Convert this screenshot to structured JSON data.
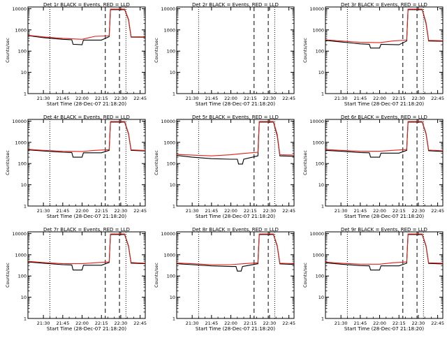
{
  "chart_data": [
    {
      "type": "line",
      "title": "Det 1r BLACK = Events, RED = LLD",
      "xlabel": "Start Time (28-Dec-07 21:18:20)",
      "ylabel": "Counts/sec",
      "x_ticks": [
        "21:30",
        "21:45",
        "22:00",
        "22:15",
        "22:30",
        "22:45"
      ],
      "y_ticks": [
        "1",
        "10",
        "100",
        "1000",
        "10000"
      ],
      "ylog": true,
      "ylim": [
        1,
        12000
      ],
      "events": [
        {
          "t": "21:18",
          "v": 540
        },
        {
          "t": "21:30",
          "v": 430
        },
        {
          "t": "21:45",
          "v": 360
        },
        {
          "t": "21:52",
          "v": 340
        },
        {
          "t": "21:53",
          "v": 210
        },
        {
          "t": "22:00",
          "v": 200
        },
        {
          "t": "22:01",
          "v": 330
        },
        {
          "t": "22:15",
          "v": 330
        },
        {
          "t": "22:21",
          "v": 480
        },
        {
          "t": "22:22",
          "v": 9000
        },
        {
          "t": "22:33",
          "v": 9000
        },
        {
          "t": "22:36",
          "v": 3000
        },
        {
          "t": "22:38",
          "v": 460
        },
        {
          "t": "22:49",
          "v": 450
        }
      ],
      "lld": [
        {
          "t": "21:18",
          "v": 560
        },
        {
          "t": "21:30",
          "v": 470
        },
        {
          "t": "21:45",
          "v": 400
        },
        {
          "t": "22:00",
          "v": 360
        },
        {
          "t": "22:10",
          "v": 500
        },
        {
          "t": "22:21",
          "v": 520
        },
        {
          "t": "22:22",
          "v": 9500
        },
        {
          "t": "22:33",
          "v": 9500
        },
        {
          "t": "22:36",
          "v": 3200
        },
        {
          "t": "22:38",
          "v": 480
        },
        {
          "t": "22:49",
          "v": 470
        }
      ]
    },
    {
      "type": "line",
      "title": "Det 2r BLACK = Events, RED = LLD",
      "xlabel": "Start Time (28-Dec-07 21:18:20)",
      "ylabel": "Counts/sec",
      "x_ticks": [
        "21:30",
        "21:45",
        "22:00",
        "22:15",
        "22:30",
        "22:45"
      ],
      "y_ticks": [
        "1",
        "10",
        "100",
        "1000",
        "10000"
      ],
      "ylog": true,
      "ylim": [
        1,
        12000
      ],
      "events": [],
      "lld": []
    },
    {
      "type": "line",
      "title": "Det 3r BLACK = Events, RED = LLD",
      "xlabel": "Start Time (28-Dec-07 21:18:20)",
      "ylabel": "Counts/sec",
      "x_ticks": [
        "21:30",
        "21:45",
        "22:00",
        "22:15",
        "22:30",
        "22:45"
      ],
      "y_ticks": [
        "1",
        "10",
        "100",
        "1000",
        "10000"
      ],
      "ylog": true,
      "ylim": [
        1,
        12000
      ],
      "events": [
        {
          "t": "21:18",
          "v": 320
        },
        {
          "t": "21:30",
          "v": 270
        },
        {
          "t": "21:45",
          "v": 220
        },
        {
          "t": "21:52",
          "v": 210
        },
        {
          "t": "21:53",
          "v": 140
        },
        {
          "t": "22:00",
          "v": 140
        },
        {
          "t": "22:01",
          "v": 210
        },
        {
          "t": "22:15",
          "v": 200
        },
        {
          "t": "22:21",
          "v": 300
        },
        {
          "t": "22:22",
          "v": 9000
        },
        {
          "t": "22:33",
          "v": 9000
        },
        {
          "t": "22:36",
          "v": 2000
        },
        {
          "t": "22:38",
          "v": 300
        },
        {
          "t": "22:49",
          "v": 290
        }
      ],
      "lld": [
        {
          "t": "21:18",
          "v": 340
        },
        {
          "t": "21:30",
          "v": 300
        },
        {
          "t": "21:45",
          "v": 260
        },
        {
          "t": "22:00",
          "v": 250
        },
        {
          "t": "22:10",
          "v": 300
        },
        {
          "t": "22:21",
          "v": 330
        },
        {
          "t": "22:22",
          "v": 9500
        },
        {
          "t": "22:33",
          "v": 9500
        },
        {
          "t": "22:36",
          "v": 2200
        },
        {
          "t": "22:38",
          "v": 320
        },
        {
          "t": "22:49",
          "v": 310
        }
      ]
    },
    {
      "type": "line",
      "title": "Det 4r BLACK = Events, RED = LLD",
      "xlabel": "Start Time (28-Dec-07 21:18:20)",
      "ylabel": "Counts/sec",
      "x_ticks": [
        "21:30",
        "21:45",
        "22:00",
        "22:15",
        "22:30",
        "22:45"
      ],
      "y_ticks": [
        "1",
        "10",
        "100",
        "1000",
        "10000"
      ],
      "ylog": true,
      "ylim": [
        1,
        12000
      ],
      "events": [
        {
          "t": "21:18",
          "v": 440
        },
        {
          "t": "21:30",
          "v": 390
        },
        {
          "t": "21:45",
          "v": 340
        },
        {
          "t": "21:52",
          "v": 330
        },
        {
          "t": "21:53",
          "v": 200
        },
        {
          "t": "22:00",
          "v": 200
        },
        {
          "t": "22:01",
          "v": 320
        },
        {
          "t": "22:15",
          "v": 320
        },
        {
          "t": "22:21",
          "v": 420
        },
        {
          "t": "22:22",
          "v": 9000
        },
        {
          "t": "22:33",
          "v": 9000
        },
        {
          "t": "22:36",
          "v": 2500
        },
        {
          "t": "22:38",
          "v": 420
        },
        {
          "t": "22:49",
          "v": 390
        }
      ],
      "lld": [
        {
          "t": "21:18",
          "v": 470
        },
        {
          "t": "21:30",
          "v": 420
        },
        {
          "t": "21:45",
          "v": 380
        },
        {
          "t": "22:00",
          "v": 370
        },
        {
          "t": "22:10",
          "v": 420
        },
        {
          "t": "22:21",
          "v": 450
        },
        {
          "t": "22:22",
          "v": 9500
        },
        {
          "t": "22:33",
          "v": 9500
        },
        {
          "t": "22:36",
          "v": 2700
        },
        {
          "t": "22:38",
          "v": 440
        },
        {
          "t": "22:49",
          "v": 410
        }
      ]
    },
    {
      "type": "line",
      "title": "Det 5r BLACK = Events, RED = LLD",
      "xlabel": "Start Time (28-Dec-07 21:18:20)",
      "ylabel": "Counts/sec",
      "x_ticks": [
        "21:30",
        "21:45",
        "22:00",
        "22:15",
        "22:30",
        "22:45"
      ],
      "y_ticks": [
        "1",
        "10",
        "100",
        "1000",
        "10000"
      ],
      "ylog": true,
      "ylim": [
        1,
        12000
      ],
      "events": [
        {
          "t": "21:18",
          "v": 240
        },
        {
          "t": "21:30",
          "v": 200
        },
        {
          "t": "21:45",
          "v": 170
        },
        {
          "t": "22:00",
          "v": 160
        },
        {
          "t": "22:05",
          "v": 160
        },
        {
          "t": "22:06",
          "v": 95
        },
        {
          "t": "22:09",
          "v": 95
        },
        {
          "t": "22:10",
          "v": 160
        },
        {
          "t": "22:21",
          "v": 230
        },
        {
          "t": "22:22",
          "v": 9000
        },
        {
          "t": "22:33",
          "v": 9000
        },
        {
          "t": "22:36",
          "v": 2000
        },
        {
          "t": "22:38",
          "v": 230
        },
        {
          "t": "22:49",
          "v": 220
        }
      ],
      "lld": [
        {
          "t": "21:18",
          "v": 270
        },
        {
          "t": "21:30",
          "v": 250
        },
        {
          "t": "21:45",
          "v": 230
        },
        {
          "t": "22:00",
          "v": 260
        },
        {
          "t": "22:10",
          "v": 300
        },
        {
          "t": "22:21",
          "v": 340
        },
        {
          "t": "22:22",
          "v": 9500
        },
        {
          "t": "22:33",
          "v": 9500
        },
        {
          "t": "22:36",
          "v": 2300
        },
        {
          "t": "22:38",
          "v": 260
        },
        {
          "t": "22:49",
          "v": 250
        }
      ]
    },
    {
      "type": "line",
      "title": "Det 6r BLACK = Events, RED = LLD",
      "xlabel": "Start Time (28-Dec-07 21:18:20)",
      "ylabel": "Counts/sec",
      "x_ticks": [
        "21:30",
        "21:45",
        "22:00",
        "22:15",
        "22:30",
        "22:45"
      ],
      "y_ticks": [
        "1",
        "10",
        "100",
        "1000",
        "10000"
      ],
      "ylog": true,
      "ylim": [
        1,
        12000
      ],
      "events": [
        {
          "t": "21:18",
          "v": 420
        },
        {
          "t": "21:30",
          "v": 380
        },
        {
          "t": "21:45",
          "v": 330
        },
        {
          "t": "21:52",
          "v": 320
        },
        {
          "t": "21:53",
          "v": 200
        },
        {
          "t": "22:00",
          "v": 200
        },
        {
          "t": "22:01",
          "v": 310
        },
        {
          "t": "22:15",
          "v": 310
        },
        {
          "t": "22:21",
          "v": 420
        },
        {
          "t": "22:22",
          "v": 9000
        },
        {
          "t": "22:33",
          "v": 9000
        },
        {
          "t": "22:36",
          "v": 2500
        },
        {
          "t": "22:38",
          "v": 400
        },
        {
          "t": "22:49",
          "v": 370
        }
      ],
      "lld": [
        {
          "t": "21:18",
          "v": 460
        },
        {
          "t": "21:30",
          "v": 420
        },
        {
          "t": "21:45",
          "v": 380
        },
        {
          "t": "22:00",
          "v": 380
        },
        {
          "t": "22:10",
          "v": 420
        },
        {
          "t": "22:21",
          "v": 460
        },
        {
          "t": "22:22",
          "v": 9500
        },
        {
          "t": "22:33",
          "v": 9500
        },
        {
          "t": "22:36",
          "v": 2700
        },
        {
          "t": "22:38",
          "v": 430
        },
        {
          "t": "22:49",
          "v": 400
        }
      ]
    },
    {
      "type": "line",
      "title": "Det 7r BLACK = Events, RED = LLD",
      "xlabel": "Start Time (28-Dec-07 21:18:20)",
      "ylabel": "Counts/sec",
      "x_ticks": [
        "21:30",
        "21:45",
        "22:00",
        "22:15",
        "22:30",
        "22:45"
      ],
      "y_ticks": [
        "1",
        "10",
        "100",
        "1000",
        "10000"
      ],
      "ylog": true,
      "ylim": [
        1,
        12000
      ],
      "events": [
        {
          "t": "21:18",
          "v": 460
        },
        {
          "t": "21:30",
          "v": 400
        },
        {
          "t": "21:45",
          "v": 340
        },
        {
          "t": "21:52",
          "v": 330
        },
        {
          "t": "21:53",
          "v": 190
        },
        {
          "t": "22:00",
          "v": 190
        },
        {
          "t": "22:01",
          "v": 320
        },
        {
          "t": "22:15",
          "v": 320
        },
        {
          "t": "22:21",
          "v": 430
        },
        {
          "t": "22:22",
          "v": 9000
        },
        {
          "t": "22:33",
          "v": 9000
        },
        {
          "t": "22:36",
          "v": 2500
        },
        {
          "t": "22:38",
          "v": 400
        },
        {
          "t": "22:49",
          "v": 380
        }
      ],
      "lld": [
        {
          "t": "21:18",
          "v": 490
        },
        {
          "t": "21:30",
          "v": 430
        },
        {
          "t": "21:45",
          "v": 380
        },
        {
          "t": "22:00",
          "v": 380
        },
        {
          "t": "22:10",
          "v": 420
        },
        {
          "t": "22:21",
          "v": 460
        },
        {
          "t": "22:22",
          "v": 9500
        },
        {
          "t": "22:33",
          "v": 9500
        },
        {
          "t": "22:36",
          "v": 2700
        },
        {
          "t": "22:38",
          "v": 430
        },
        {
          "t": "22:49",
          "v": 400
        }
      ]
    },
    {
      "type": "line",
      "title": "Det 8r BLACK = Events, RED = LLD",
      "xlabel": "Start Time (28-Dec-07 21:18:20)",
      "ylabel": "Counts/sec",
      "x_ticks": [
        "21:30",
        "21:45",
        "22:00",
        "22:15",
        "22:30",
        "22:45"
      ],
      "y_ticks": [
        "1",
        "10",
        "100",
        "1000",
        "10000"
      ],
      "ylog": true,
      "ylim": [
        1,
        12000
      ],
      "events": [
        {
          "t": "21:18",
          "v": 380
        },
        {
          "t": "21:30",
          "v": 340
        },
        {
          "t": "21:45",
          "v": 300
        },
        {
          "t": "22:00",
          "v": 280
        },
        {
          "t": "22:04",
          "v": 280
        },
        {
          "t": "22:05",
          "v": 170
        },
        {
          "t": "22:08",
          "v": 170
        },
        {
          "t": "22:09",
          "v": 280
        },
        {
          "t": "22:21",
          "v": 380
        },
        {
          "t": "22:22",
          "v": 9000
        },
        {
          "t": "22:33",
          "v": 9000
        },
        {
          "t": "22:36",
          "v": 2500
        },
        {
          "t": "22:38",
          "v": 370
        },
        {
          "t": "22:49",
          "v": 350
        }
      ],
      "lld": [
        {
          "t": "21:18",
          "v": 410
        },
        {
          "t": "21:30",
          "v": 380
        },
        {
          "t": "21:45",
          "v": 340
        },
        {
          "t": "22:00",
          "v": 340
        },
        {
          "t": "22:10",
          "v": 380
        },
        {
          "t": "22:21",
          "v": 420
        },
        {
          "t": "22:22",
          "v": 9500
        },
        {
          "t": "22:33",
          "v": 9500
        },
        {
          "t": "22:36",
          "v": 2700
        },
        {
          "t": "22:38",
          "v": 400
        },
        {
          "t": "22:49",
          "v": 380
        }
      ]
    },
    {
      "type": "line",
      "title": "Det 9r BLACK = Events, RED = LLD",
      "xlabel": "Start Time (28-Dec-07 21:18:20)",
      "ylabel": "Counts/sec",
      "x_ticks": [
        "21:30",
        "21:45",
        "22:00",
        "22:15",
        "22:30",
        "22:45"
      ],
      "y_ticks": [
        "1",
        "10",
        "100",
        "1000",
        "10000"
      ],
      "ylog": true,
      "ylim": [
        1,
        12000
      ],
      "events": [
        {
          "t": "21:18",
          "v": 420
        },
        {
          "t": "21:30",
          "v": 360
        },
        {
          "t": "21:45",
          "v": 310
        },
        {
          "t": "21:52",
          "v": 300
        },
        {
          "t": "21:53",
          "v": 190
        },
        {
          "t": "22:00",
          "v": 190
        },
        {
          "t": "22:01",
          "v": 300
        },
        {
          "t": "22:15",
          "v": 300
        },
        {
          "t": "22:21",
          "v": 400
        },
        {
          "t": "22:22",
          "v": 9000
        },
        {
          "t": "22:33",
          "v": 9000
        },
        {
          "t": "22:36",
          "v": 2500
        },
        {
          "t": "22:38",
          "v": 390
        },
        {
          "t": "22:49",
          "v": 370
        }
      ],
      "lld": [
        {
          "t": "21:18",
          "v": 450
        },
        {
          "t": "21:30",
          "v": 400
        },
        {
          "t": "21:45",
          "v": 360
        },
        {
          "t": "22:00",
          "v": 360
        },
        {
          "t": "22:10",
          "v": 420
        },
        {
          "t": "22:21",
          "v": 460
        },
        {
          "t": "22:22",
          "v": 9500
        },
        {
          "t": "22:33",
          "v": 9500
        },
        {
          "t": "22:36",
          "v": 2700
        },
        {
          "t": "22:38",
          "v": 420
        },
        {
          "t": "22:49",
          "v": 400
        }
      ]
    }
  ],
  "markers": {
    "dotted_times": [
      "21:35",
      "22:34"
    ],
    "dashed_times": [
      "22:18",
      "22:29"
    ]
  },
  "colors": {
    "events": "#000000",
    "lld": "#e0201a",
    "axes": "#000000",
    "background": "#ffffff"
  }
}
